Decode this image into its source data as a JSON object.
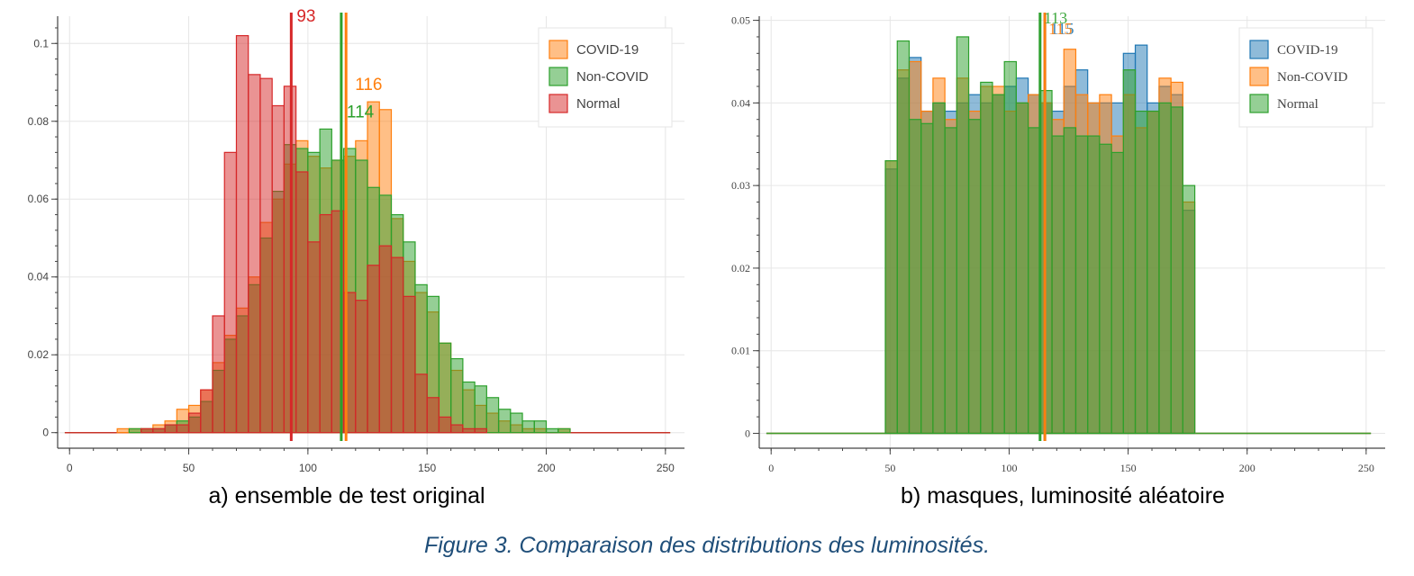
{
  "figure_caption": "Figure 3. Comparaison des distributions des luminosités.",
  "chart_data": [
    {
      "type": "bar",
      "subtitle": "a) ensemble de test original",
      "title": "",
      "xlabel": "",
      "ylabel": "",
      "xlim": [
        -5,
        258
      ],
      "ylim": [
        -0.004,
        0.107
      ],
      "x_ticks": [
        0,
        50,
        100,
        150,
        200,
        250
      ],
      "y_ticks": [
        0,
        0.02,
        0.04,
        0.06,
        0.08,
        0.1
      ],
      "y_tick_labels": [
        "0",
        "0.02",
        "0.04",
        "0.06",
        "0.08",
        "0.1"
      ],
      "grid": true,
      "legend_position": "top-right",
      "bin_edges": [
        15,
        20,
        25,
        30,
        35,
        40,
        45,
        50,
        55,
        60,
        65,
        70,
        75,
        80,
        85,
        90,
        95,
        100,
        105,
        110,
        115,
        120,
        125,
        130,
        135,
        140,
        145,
        150,
        155,
        160,
        165,
        170,
        175,
        180,
        185,
        190,
        195,
        200,
        205,
        210
      ],
      "series": [
        {
          "name": "COVID-19",
          "color": "#ff7f0e",
          "values": [
            0.0,
            0.001,
            0.001,
            0.001,
            0.002,
            0.003,
            0.006,
            0.007,
            0.011,
            0.018,
            0.025,
            0.032,
            0.04,
            0.054,
            0.06,
            0.069,
            0.075,
            0.071,
            0.068,
            0.07,
            0.071,
            0.075,
            0.085,
            0.083,
            0.055,
            0.044,
            0.036,
            0.031,
            0.023,
            0.016,
            0.011,
            0.007,
            0.005,
            0.003,
            0.002,
            0.001,
            0.001,
            0.0,
            0.001
          ],
          "mean": 116,
          "mean_label": "116"
        },
        {
          "name": "Non-COVID",
          "color": "#2ca02c",
          "values": [
            0.0,
            0.0,
            0.001,
            0.001,
            0.001,
            0.002,
            0.003,
            0.004,
            0.008,
            0.016,
            0.024,
            0.03,
            0.038,
            0.05,
            0.062,
            0.074,
            0.073,
            0.072,
            0.078,
            0.07,
            0.073,
            0.07,
            0.063,
            0.061,
            0.056,
            0.049,
            0.038,
            0.035,
            0.023,
            0.019,
            0.013,
            0.012,
            0.009,
            0.006,
            0.005,
            0.003,
            0.003,
            0.001,
            0.001
          ],
          "mean": 114,
          "mean_label": "114"
        },
        {
          "name": "Normal",
          "color": "#d62728",
          "values": [
            0.0,
            0.0,
            0.0,
            0.001,
            0.001,
            0.002,
            0.002,
            0.005,
            0.011,
            0.03,
            0.072,
            0.102,
            0.092,
            0.091,
            0.084,
            0.089,
            0.067,
            0.049,
            0.056,
            0.057,
            0.036,
            0.034,
            0.043,
            0.048,
            0.045,
            0.035,
            0.015,
            0.009,
            0.004,
            0.002,
            0.001,
            0.001,
            0.0,
            0.0,
            0.0,
            0.0,
            0.0,
            0.0,
            0.0
          ],
          "mean": 93,
          "mean_label": "93"
        }
      ],
      "baseline_range": [
        -2,
        252
      ]
    },
    {
      "type": "bar",
      "subtitle": "b) masques, luminosité aléatoire",
      "title": "",
      "xlabel": "",
      "ylabel": "",
      "xlim": [
        -5,
        258
      ],
      "ylim": [
        -0.0018,
        0.0505
      ],
      "x_ticks": [
        0,
        50,
        100,
        150,
        200,
        250
      ],
      "y_ticks": [
        0,
        0.01,
        0.02,
        0.03,
        0.04,
        0.05
      ],
      "y_tick_labels": [
        "0",
        "0.01",
        "0.02",
        "0.03",
        "0.04",
        "0.05"
      ],
      "grid": true,
      "legend_position": "top-right",
      "bin_edges": [
        48,
        53,
        58,
        63,
        68,
        73,
        78,
        83,
        88,
        93,
        98,
        103,
        108,
        113,
        118,
        123,
        128,
        133,
        138,
        143,
        148,
        153,
        158,
        163,
        168,
        173,
        178
      ],
      "series": [
        {
          "name": "COVID-19",
          "color": "#1f77b4",
          "values": [
            0.032,
            0.043,
            0.0455,
            0.039,
            0.04,
            0.039,
            0.04,
            0.041,
            0.04,
            0.041,
            0.042,
            0.043,
            0.041,
            0.04,
            0.039,
            0.042,
            0.044,
            0.04,
            0.04,
            0.04,
            0.046,
            0.047,
            0.04,
            0.042,
            0.041,
            0.027
          ],
          "mean": 115,
          "mean_label": "115"
        },
        {
          "name": "Non-COVID",
          "color": "#ff7f0e",
          "values": [
            0.033,
            0.044,
            0.045,
            0.039,
            0.043,
            0.038,
            0.043,
            0.039,
            0.042,
            0.042,
            0.039,
            0.04,
            0.041,
            0.04,
            0.038,
            0.0465,
            0.041,
            0.04,
            0.041,
            0.036,
            0.041,
            0.037,
            0.039,
            0.043,
            0.0425,
            0.028
          ],
          "mean": 115,
          "mean_label": "115"
        },
        {
          "name": "Normal",
          "color": "#2ca02c",
          "values": [
            0.033,
            0.0475,
            0.038,
            0.0375,
            0.04,
            0.037,
            0.048,
            0.038,
            0.0425,
            0.041,
            0.045,
            0.04,
            0.037,
            0.0415,
            0.036,
            0.037,
            0.036,
            0.036,
            0.035,
            0.034,
            0.044,
            0.039,
            0.039,
            0.04,
            0.0395,
            0.03
          ],
          "mean": 113,
          "mean_label": "113"
        }
      ],
      "baseline_range": [
        -2,
        252
      ]
    }
  ]
}
